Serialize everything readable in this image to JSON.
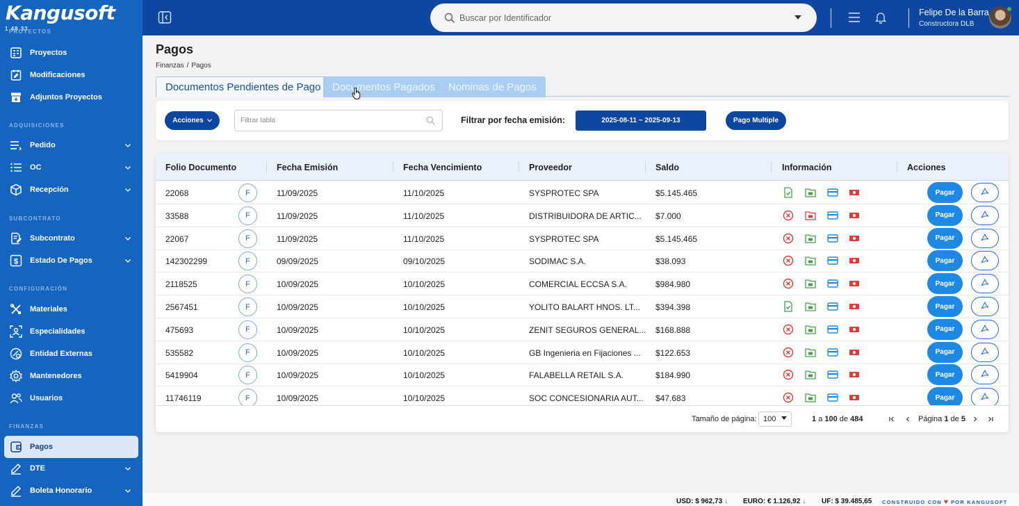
{
  "app": {
    "logo_text": "Kangusoft",
    "version": "1.48.33",
    "primary_color": "#1565c0",
    "header_color": "#0d47a1"
  },
  "sidebar": {
    "sections": {
      "proyectos": "PROYECTOS",
      "adquisiciones": "ADQUISICIONES",
      "subcontrato": "SUBCONTRATO",
      "configuracion": "CONFIGURACIÓN",
      "finanzas": "FINANZAS"
    },
    "items": [
      {
        "label": "Proyectos",
        "icon": "projects-icon",
        "expandable": false
      },
      {
        "label": "Modificaciones",
        "icon": "calendar-edit-icon",
        "expandable": false
      },
      {
        "label": "Adjuntos Proyectos",
        "icon": "archive-icon",
        "expandable": false
      },
      {
        "label": "Pedido",
        "icon": "list-icon",
        "expandable": true
      },
      {
        "label": "OC",
        "icon": "checklist-icon",
        "expandable": true
      },
      {
        "label": "Recepción",
        "icon": "box-icon",
        "expandable": true
      },
      {
        "label": "Subcontrato",
        "icon": "document-edit-icon",
        "expandable": true
      },
      {
        "label": "Estado De Pagos",
        "icon": "dollar-icon",
        "expandable": true
      },
      {
        "label": "Materiales",
        "icon": "tools-icon",
        "expandable": false
      },
      {
        "label": "Especialidades",
        "icon": "person-scan-icon",
        "expandable": false
      },
      {
        "label": "Entidad Externas",
        "icon": "link-icon",
        "expandable": false
      },
      {
        "label": "Mantenedores",
        "icon": "gear-icon",
        "expandable": false
      },
      {
        "label": "Usuarios",
        "icon": "users-icon",
        "expandable": false
      },
      {
        "label": "Pagos",
        "icon": "wallet-icon",
        "expandable": false,
        "active": true
      },
      {
        "label": "DTE",
        "icon": "pen-icon",
        "expandable": true
      },
      {
        "label": "Boleta Honorario",
        "icon": "pen-icon",
        "expandable": true
      }
    ]
  },
  "header": {
    "search_placeholder": "Buscar por Identificador",
    "user_name": "Felipe De la Barra",
    "user_company": "Constructora DLB"
  },
  "page": {
    "title": "Pagos",
    "breadcrumb": [
      "Finanzas",
      "Pagos"
    ],
    "breadcrumb_sep": "/"
  },
  "tabs": [
    {
      "label": "Documentos Pendientes de Pago",
      "active": true
    },
    {
      "label": "Documentos Pagados",
      "active": false
    },
    {
      "label": "Nominas de Pagos",
      "active": false
    }
  ],
  "filters": {
    "actions_label": "Acciones",
    "filter_placeholder": "Filtrar tabla",
    "date_label": "Filtrar por fecha emisión:",
    "date_range": "2025-08-11 ~ 2025-09-13",
    "multi_pay_label": "Pago Multiple"
  },
  "table": {
    "columns": [
      "Folio Documento",
      "Fecha Emisión",
      "Fecha Vencimiento",
      "Proveedor",
      "Saldo",
      "Información",
      "Acciones"
    ],
    "badge_label": "F",
    "pay_label": "Pagar",
    "rows": [
      {
        "folio": "22068",
        "emision": "11/09/2025",
        "vencimiento": "11/10/2025",
        "proveedor": "SYSPROTEC SPA",
        "saldo": "$5.145.465",
        "doc_status": "ok",
        "folder_status": "ok"
      },
      {
        "folio": "33588",
        "emision": "11/09/2025",
        "vencimiento": "11/10/2025",
        "proveedor": "DISTRIBUIDORA DE ARTIC...",
        "saldo": "$7.000",
        "doc_status": "missing",
        "folder_status": "missing"
      },
      {
        "folio": "22067",
        "emision": "11/09/2025",
        "vencimiento": "11/10/2025",
        "proveedor": "SYSPROTEC SPA",
        "saldo": "$5.145.465",
        "doc_status": "missing",
        "folder_status": "ok"
      },
      {
        "folio": "142302299",
        "emision": "09/09/2025",
        "vencimiento": "09/10/2025",
        "proveedor": "SODIMAC S.A.",
        "saldo": "$38.093",
        "doc_status": "missing",
        "folder_status": "ok"
      },
      {
        "folio": "2118525",
        "emision": "10/09/2025",
        "vencimiento": "10/10/2025",
        "proveedor": "COMERCIAL ECCSA S.A.",
        "saldo": "$984.980",
        "doc_status": "missing",
        "folder_status": "ok"
      },
      {
        "folio": "2567451",
        "emision": "10/09/2025",
        "vencimiento": "10/10/2025",
        "proveedor": "YOLITO BALART HNOS. LT...",
        "saldo": "$394.398",
        "doc_status": "ok",
        "folder_status": "ok"
      },
      {
        "folio": "475693",
        "emision": "10/09/2025",
        "vencimiento": "10/10/2025",
        "proveedor": "ZENIT SEGUROS GENERAL...",
        "saldo": "$168.888",
        "doc_status": "missing",
        "folder_status": "ok"
      },
      {
        "folio": "535582",
        "emision": "10/09/2025",
        "vencimiento": "10/10/2025",
        "proveedor": "GB Ingenieria en Fijaciones ...",
        "saldo": "$122.653",
        "doc_status": "missing",
        "folder_status": "ok"
      },
      {
        "folio": "5419904",
        "emision": "10/09/2025",
        "vencimiento": "10/10/2025",
        "proveedor": "FALABELLA RETAIL S.A.",
        "saldo": "$184.990",
        "doc_status": "missing",
        "folder_status": "ok"
      },
      {
        "folio": "11746119",
        "emision": "10/09/2025",
        "vencimiento": "10/10/2025",
        "proveedor": "SOC CONCESIONARIA AUT...",
        "saldo": "$47.683",
        "doc_status": "missing",
        "folder_status": "ok"
      }
    ],
    "footer": {
      "page_size_label": "Tamaño de página:",
      "page_size": "100",
      "range_from": "1",
      "range_a": "a",
      "range_to": "100",
      "range_de": "de",
      "total": "484",
      "page_label": "Página",
      "page_current": "1",
      "page_de": "de",
      "page_total": "5"
    }
  },
  "bottombar": {
    "usd": "USD: $ 962,73",
    "euro": "EURO: € 1.126,92",
    "uf": "UF: $ 39.485,65",
    "built_prefix": "CONSTRUIDO CON",
    "built_suffix": "POR KANGUSOFT"
  }
}
